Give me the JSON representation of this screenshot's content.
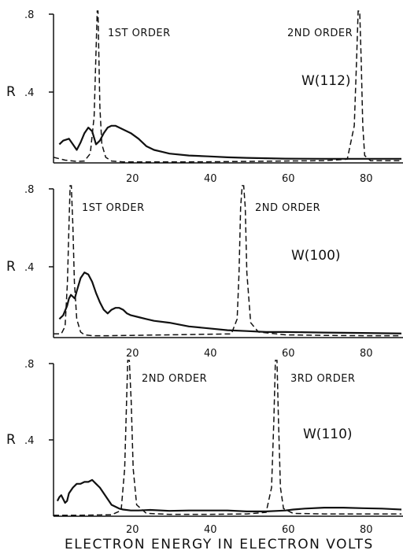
{
  "chart_data": [
    {
      "type": "line",
      "panel": "W(112)",
      "ylabel": "R",
      "y_ticks": [
        ".8",
        ".4"
      ],
      "x_ticks": [
        "20",
        "40",
        "60",
        "80"
      ],
      "xlim": [
        0,
        90
      ],
      "ylim": [
        0,
        0.8
      ],
      "annotations": [
        {
          "text": "1ST ORDER",
          "x": 12.5,
          "y": 0.72
        },
        {
          "text": "2ND ORDER",
          "x": 63,
          "y": 0.72
        },
        {
          "text": "W(112)",
          "x": 68,
          "y": 0.4
        }
      ],
      "series": [
        {
          "style": "solid",
          "x": [
            1.5,
            2.5,
            4,
            5,
            6,
            7,
            8,
            9,
            10,
            11,
            12,
            13,
            14,
            15,
            16,
            18,
            20,
            22,
            24,
            26,
            28,
            30,
            35,
            40,
            45,
            50,
            55,
            60,
            70,
            80,
            90
          ],
          "y": [
            0.1,
            0.12,
            0.13,
            0.1,
            0.07,
            0.11,
            0.16,
            0.19,
            0.17,
            0.1,
            0.12,
            0.16,
            0.19,
            0.2,
            0.2,
            0.18,
            0.16,
            0.13,
            0.09,
            0.07,
            0.06,
            0.05,
            0.04,
            0.035,
            0.03,
            0.027,
            0.025,
            0.023,
            0.022,
            0.022,
            0.022
          ]
        },
        {
          "style": "dashed",
          "x": [
            0,
            3,
            6,
            8,
            9.5,
            10.5,
            11,
            11.3,
            11.5,
            11.7,
            12,
            12.5,
            13.5,
            15,
            18,
            22,
            30,
            40,
            50,
            60,
            70,
            76,
            77.8,
            78.4,
            78.8,
            79.2,
            79.6,
            80,
            80.5,
            82,
            85,
            90
          ],
          "y": [
            0.03,
            0.015,
            0.008,
            0.01,
            0.05,
            0.25,
            0.6,
            0.86,
            0.86,
            0.6,
            0.3,
            0.1,
            0.03,
            0.01,
            0.005,
            0.005,
            0.005,
            0.006,
            0.008,
            0.01,
            0.012,
            0.02,
            0.2,
            0.55,
            0.86,
            0.86,
            0.55,
            0.2,
            0.04,
            0.012,
            0.012,
            0.012
          ]
        }
      ]
    },
    {
      "type": "line",
      "panel": "W(100)",
      "ylabel": "R",
      "y_ticks": [
        ".8",
        ".4"
      ],
      "x_ticks": [
        "20",
        "40",
        "60",
        "80"
      ],
      "xlim": [
        0,
        90
      ],
      "ylim": [
        0,
        0.8
      ],
      "annotations": [
        {
          "text": "1ST ORDER",
          "x": 5.5,
          "y": 0.72
        },
        {
          "text": "2ND ORDER",
          "x": 51,
          "y": 0.72
        },
        {
          "text": "W(100)",
          "x": 61,
          "y": 0.4
        }
      ],
      "series": [
        {
          "style": "solid",
          "x": [
            1.5,
            2.5,
            3.5,
            4,
            4.5,
            5,
            5.5,
            6,
            7,
            8,
            9,
            10,
            11,
            12,
            13,
            14,
            15,
            16,
            17,
            18,
            19,
            20,
            22,
            24,
            26,
            30,
            35,
            40,
            45,
            50,
            55,
            60,
            70,
            80,
            90
          ],
          "y": [
            0.1,
            0.12,
            0.17,
            0.21,
            0.23,
            0.22,
            0.21,
            0.25,
            0.32,
            0.35,
            0.34,
            0.3,
            0.24,
            0.19,
            0.15,
            0.13,
            0.15,
            0.16,
            0.16,
            0.15,
            0.13,
            0.12,
            0.11,
            0.1,
            0.09,
            0.08,
            0.06,
            0.05,
            0.04,
            0.035,
            0.03,
            0.03,
            0.027,
            0.025,
            0.022
          ]
        },
        {
          "style": "dashed",
          "x": [
            0,
            2,
            3,
            3.6,
            4,
            4.3,
            4.6,
            5,
            5.4,
            6,
            7,
            8,
            10,
            14,
            20,
            30,
            40,
            46,
            47.5,
            48,
            48.4,
            48.8,
            49.2,
            49.6,
            50,
            51,
            53,
            60,
            70,
            80,
            90
          ],
          "y": [
            0.02,
            0.02,
            0.06,
            0.3,
            0.6,
            0.86,
            0.86,
            0.6,
            0.3,
            0.1,
            0.03,
            0.015,
            0.01,
            0.01,
            0.012,
            0.015,
            0.018,
            0.02,
            0.1,
            0.35,
            0.7,
            0.86,
            0.86,
            0.7,
            0.35,
            0.08,
            0.03,
            0.015,
            0.012,
            0.01,
            0.01
          ]
        }
      ]
    },
    {
      "type": "line",
      "panel": "W(110)",
      "ylabel": "R",
      "y_ticks": [
        ".8",
        ".4"
      ],
      "x_ticks": [
        "20",
        "40",
        "60",
        "80"
      ],
      "xlim": [
        0,
        90
      ],
      "ylim": [
        0,
        0.8
      ],
      "annotations": [
        {
          "text": "2ND ORDER",
          "x": 21,
          "y": 0.72
        },
        {
          "text": "3RD ORDER",
          "x": 60,
          "y": 0.72
        },
        {
          "text": "W(110)",
          "x": 61,
          "y": 0.4
        }
      ],
      "series": [
        {
          "style": "solid",
          "x": [
            1,
            1.5,
            2,
            2.5,
            3,
            3.5,
            4,
            5,
            6,
            7,
            8,
            9,
            10,
            11,
            12,
            13,
            14,
            15,
            16,
            17,
            18,
            20,
            22,
            25,
            30,
            35,
            40,
            45,
            50,
            55,
            58,
            60,
            62,
            65,
            70,
            75,
            80,
            85,
            90
          ],
          "y": [
            0.08,
            0.1,
            0.11,
            0.09,
            0.07,
            0.08,
            0.12,
            0.15,
            0.17,
            0.17,
            0.18,
            0.18,
            0.19,
            0.17,
            0.15,
            0.12,
            0.09,
            0.06,
            0.05,
            0.04,
            0.035,
            0.03,
            0.03,
            0.033,
            0.028,
            0.03,
            0.03,
            0.03,
            0.025,
            0.025,
            0.028,
            0.03,
            0.035,
            0.04,
            0.045,
            0.045,
            0.042,
            0.04,
            0.035
          ]
        },
        {
          "style": "dashed",
          "x": [
            0,
            5,
            10,
            15,
            17.5,
            18.4,
            18.9,
            19.2,
            19.6,
            20.1,
            20.6,
            21.5,
            24,
            30,
            40,
            50,
            55,
            56.4,
            57.0,
            57.4,
            57.8,
            58.2,
            58.7,
            59.5,
            62,
            70,
            80,
            90
          ],
          "y": [
            0.005,
            0.005,
            0.006,
            0.008,
            0.03,
            0.25,
            0.6,
            0.86,
            0.86,
            0.6,
            0.25,
            0.06,
            0.015,
            0.01,
            0.01,
            0.012,
            0.02,
            0.15,
            0.5,
            0.86,
            0.86,
            0.5,
            0.15,
            0.04,
            0.015,
            0.012,
            0.012,
            0.012
          ]
        }
      ]
    }
  ],
  "xtitle": "ELECTRON ENERGY IN ELECTRON VOLTS"
}
